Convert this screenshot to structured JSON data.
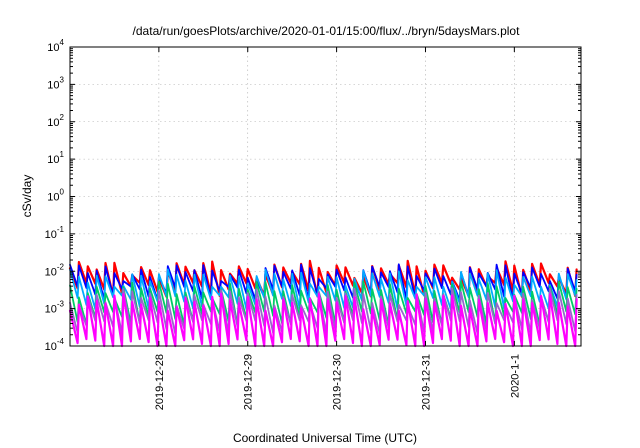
{
  "chart_data": {
    "type": "line",
    "title": "/data/run/goesPlots/archive/2020-01-01/15:00/flux/../bryn/5daysMars.plot",
    "xlabel": "Coordinated Universal Time (UTC)",
    "ylabel": "cSv/day",
    "yscale": "log",
    "ylim": [
      0.0001,
      10000
    ],
    "y_ticks": [
      {
        "base": "10",
        "exp": "4",
        "value": 10000
      },
      {
        "base": "10",
        "exp": "3",
        "value": 1000
      },
      {
        "base": "10",
        "exp": "2",
        "value": 100
      },
      {
        "base": "10",
        "exp": "1",
        "value": 10
      },
      {
        "base": "10",
        "exp": "0",
        "value": 1
      },
      {
        "base": "10",
        "exp": "-1",
        "value": 0.1
      },
      {
        "base": "10",
        "exp": "-2",
        "value": 0.01
      },
      {
        "base": "10",
        "exp": "-3",
        "value": 0.001
      },
      {
        "base": "10",
        "exp": "-4",
        "value": 0.0001
      }
    ],
    "xlim": [
      "2019-12-27T00:00",
      "2020-01-01T18:00"
    ],
    "x_ticks": [
      {
        "label": "2019-12-28",
        "value": "2019-12-28T00:00"
      },
      {
        "label": "2019-12-29",
        "value": "2019-12-29T00:00"
      },
      {
        "label": "2019-12-30",
        "value": "2019-12-30T00:00"
      },
      {
        "label": "2019-12-31",
        "value": "2019-12-31T00:00"
      },
      {
        "label": "2020-1-1",
        "value": "2020-01-01T00:00"
      }
    ],
    "grid": true,
    "series_pattern": {
      "shape": "sawtooth",
      "cycle_hours": 2.4,
      "start": "2019-12-27T00:00",
      "end": "2020-01-01T18:00"
    },
    "series": [
      {
        "color": "#ff0000",
        "peak": 0.012,
        "trough": 0.0035
      },
      {
        "color": "#0000ff",
        "peak": 0.01,
        "trough": 0.0028
      },
      {
        "color": "#00aaff",
        "peak": 0.007,
        "trough": 0.0016
      },
      {
        "color": "#00cc66",
        "peak": 0.0035,
        "trough": 0.0006
      },
      {
        "color": "#9966cc",
        "peak": 0.0022,
        "trough": 0.00035
      },
      {
        "color": "#ff00ff",
        "peak": 0.0016,
        "trough": 0.00011
      }
    ]
  }
}
